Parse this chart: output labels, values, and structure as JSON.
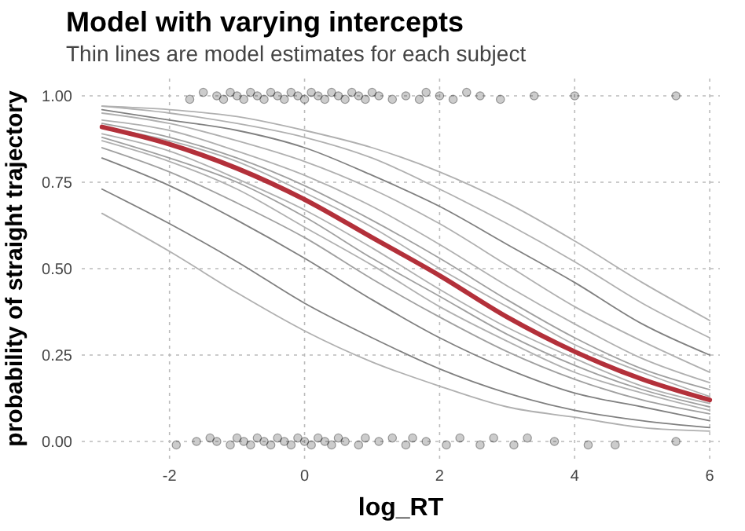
{
  "chart_data": {
    "type": "line",
    "title": "Model with varying intercepts",
    "subtitle": "Thin lines are model estimates for each subject",
    "xlabel": "log_RT",
    "ylabel": "probability of straight trajectory",
    "xlim": [
      -3.3,
      6.15
    ],
    "xticks": [
      -2,
      0,
      2,
      4,
      6
    ],
    "ylim": [
      -0.05,
      1.05
    ],
    "yticks": [
      {
        "value": 0,
        "label": "0.00"
      },
      {
        "value": 0.25,
        "label": "0.25"
      },
      {
        "value": 0.5,
        "label": "0.50"
      },
      {
        "value": 0.75,
        "label": "0.75"
      },
      {
        "value": 1,
        "label": "1.00"
      }
    ],
    "grid": true,
    "x": [
      -3,
      -2,
      -1,
      0,
      1,
      2,
      3,
      4,
      5,
      6
    ],
    "series": [
      {
        "color": "#b0b0b0",
        "values": [
          0.66,
          0.55,
          0.43,
          0.32,
          0.23,
          0.16,
          0.1,
          0.07,
          0.04,
          0.03
        ]
      },
      {
        "color": "#808080",
        "values": [
          0.73,
          0.63,
          0.52,
          0.4,
          0.3,
          0.21,
          0.14,
          0.09,
          0.06,
          0.04
        ]
      },
      {
        "color": "#808080",
        "values": [
          0.82,
          0.74,
          0.64,
          0.53,
          0.41,
          0.3,
          0.21,
          0.14,
          0.1,
          0.06
        ]
      },
      {
        "color": "#a0a0a0",
        "values": [
          0.85,
          0.78,
          0.69,
          0.59,
          0.47,
          0.36,
          0.26,
          0.18,
          0.12,
          0.08
        ]
      },
      {
        "color": "#b0b0b0",
        "values": [
          0.87,
          0.81,
          0.73,
          0.62,
          0.51,
          0.39,
          0.29,
          0.2,
          0.14,
          0.09
        ]
      },
      {
        "color": "#a0a0a0",
        "values": [
          0.88,
          0.82,
          0.75,
          0.65,
          0.53,
          0.42,
          0.31,
          0.22,
          0.15,
          0.1
        ]
      },
      {
        "color": "#b0b0b0",
        "values": [
          0.89,
          0.84,
          0.76,
          0.67,
          0.56,
          0.44,
          0.33,
          0.24,
          0.16,
          0.11
        ]
      },
      {
        "color": "#b0b0b0",
        "values": [
          0.91,
          0.87,
          0.81,
          0.72,
          0.62,
          0.5,
          0.39,
          0.28,
          0.2,
          0.13
        ]
      },
      {
        "color": "#a0a0a0",
        "values": [
          0.92,
          0.88,
          0.82,
          0.74,
          0.64,
          0.53,
          0.41,
          0.3,
          0.21,
          0.15
        ]
      },
      {
        "color": "#b0b0b0",
        "values": [
          0.93,
          0.9,
          0.84,
          0.77,
          0.68,
          0.57,
          0.45,
          0.34,
          0.24,
          0.17
        ]
      },
      {
        "color": "#b0b0b0",
        "values": [
          0.95,
          0.92,
          0.87,
          0.81,
          0.73,
          0.63,
          0.51,
          0.39,
          0.29,
          0.2
        ]
      },
      {
        "color": "#808080",
        "values": [
          0.96,
          0.93,
          0.9,
          0.85,
          0.77,
          0.68,
          0.57,
          0.46,
          0.34,
          0.25
        ]
      },
      {
        "color": "#b0b0b0",
        "values": [
          0.97,
          0.95,
          0.92,
          0.88,
          0.82,
          0.73,
          0.63,
          0.52,
          0.4,
          0.3
        ]
      },
      {
        "color": "#b0b0b0",
        "values": [
          0.97,
          0.96,
          0.94,
          0.9,
          0.85,
          0.78,
          0.69,
          0.58,
          0.46,
          0.35
        ]
      },
      {
        "color": "#b3303a",
        "values": [
          0.91,
          0.86,
          0.79,
          0.7,
          0.59,
          0.48,
          0.36,
          0.26,
          0.18,
          0.12
        ]
      },
      {
        "type": "scatter",
        "marker": "circle",
        "color": "#000000",
        "x": [
          -1.7,
          -1.5,
          -1.3,
          -1.2,
          -1.1,
          -1.0,
          -0.9,
          -0.8,
          -0.7,
          -0.6,
          -0.5,
          -0.4,
          -0.3,
          -0.2,
          -0.1,
          0.0,
          0.1,
          0.2,
          0.3,
          0.4,
          0.5,
          0.6,
          0.7,
          0.8,
          0.9,
          1.0,
          1.1,
          1.3,
          1.5,
          1.7,
          1.8,
          2.0,
          2.2,
          2.4,
          2.6,
          2.9,
          3.4,
          4.0,
          5.5
        ],
        "values": [
          0.99,
          1.01,
          1.0,
          0.99,
          1.01,
          1.0,
          0.99,
          1.01,
          1.0,
          0.99,
          1.01,
          1.0,
          0.99,
          1.01,
          1.0,
          0.99,
          1.01,
          1.0,
          0.99,
          1.01,
          1.0,
          0.99,
          1.01,
          1.0,
          0.99,
          1.01,
          1.0,
          0.99,
          1.0,
          0.99,
          1.01,
          1.0,
          0.99,
          1.01,
          1.0,
          0.99,
          1.0,
          1.0,
          1.0
        ]
      },
      {
        "type": "scatter",
        "marker": "circle",
        "color": "#000000",
        "x": [
          -1.9,
          -1.6,
          -1.4,
          -1.3,
          -1.1,
          -1.0,
          -0.9,
          -0.8,
          -0.7,
          -0.6,
          -0.5,
          -0.4,
          -0.3,
          -0.2,
          -0.1,
          0.0,
          0.1,
          0.2,
          0.3,
          0.4,
          0.5,
          0.6,
          0.8,
          0.9,
          1.1,
          1.3,
          1.5,
          1.6,
          1.8,
          2.1,
          2.3,
          2.6,
          2.8,
          3.1,
          3.3,
          3.7,
          4.2,
          4.6,
          5.5
        ],
        "values": [
          -0.01,
          0.0,
          0.01,
          0.0,
          -0.01,
          0.01,
          0.0,
          -0.01,
          0.01,
          0.0,
          -0.01,
          0.01,
          0.0,
          -0.01,
          0.01,
          0.0,
          -0.01,
          0.01,
          0.0,
          -0.01,
          0.01,
          0.0,
          -0.01,
          0.01,
          0.0,
          0.01,
          -0.01,
          0.01,
          0.0,
          -0.01,
          0.01,
          -0.01,
          0.01,
          -0.01,
          0.01,
          0.0,
          -0.01,
          -0.01,
          0.0
        ]
      }
    ]
  }
}
